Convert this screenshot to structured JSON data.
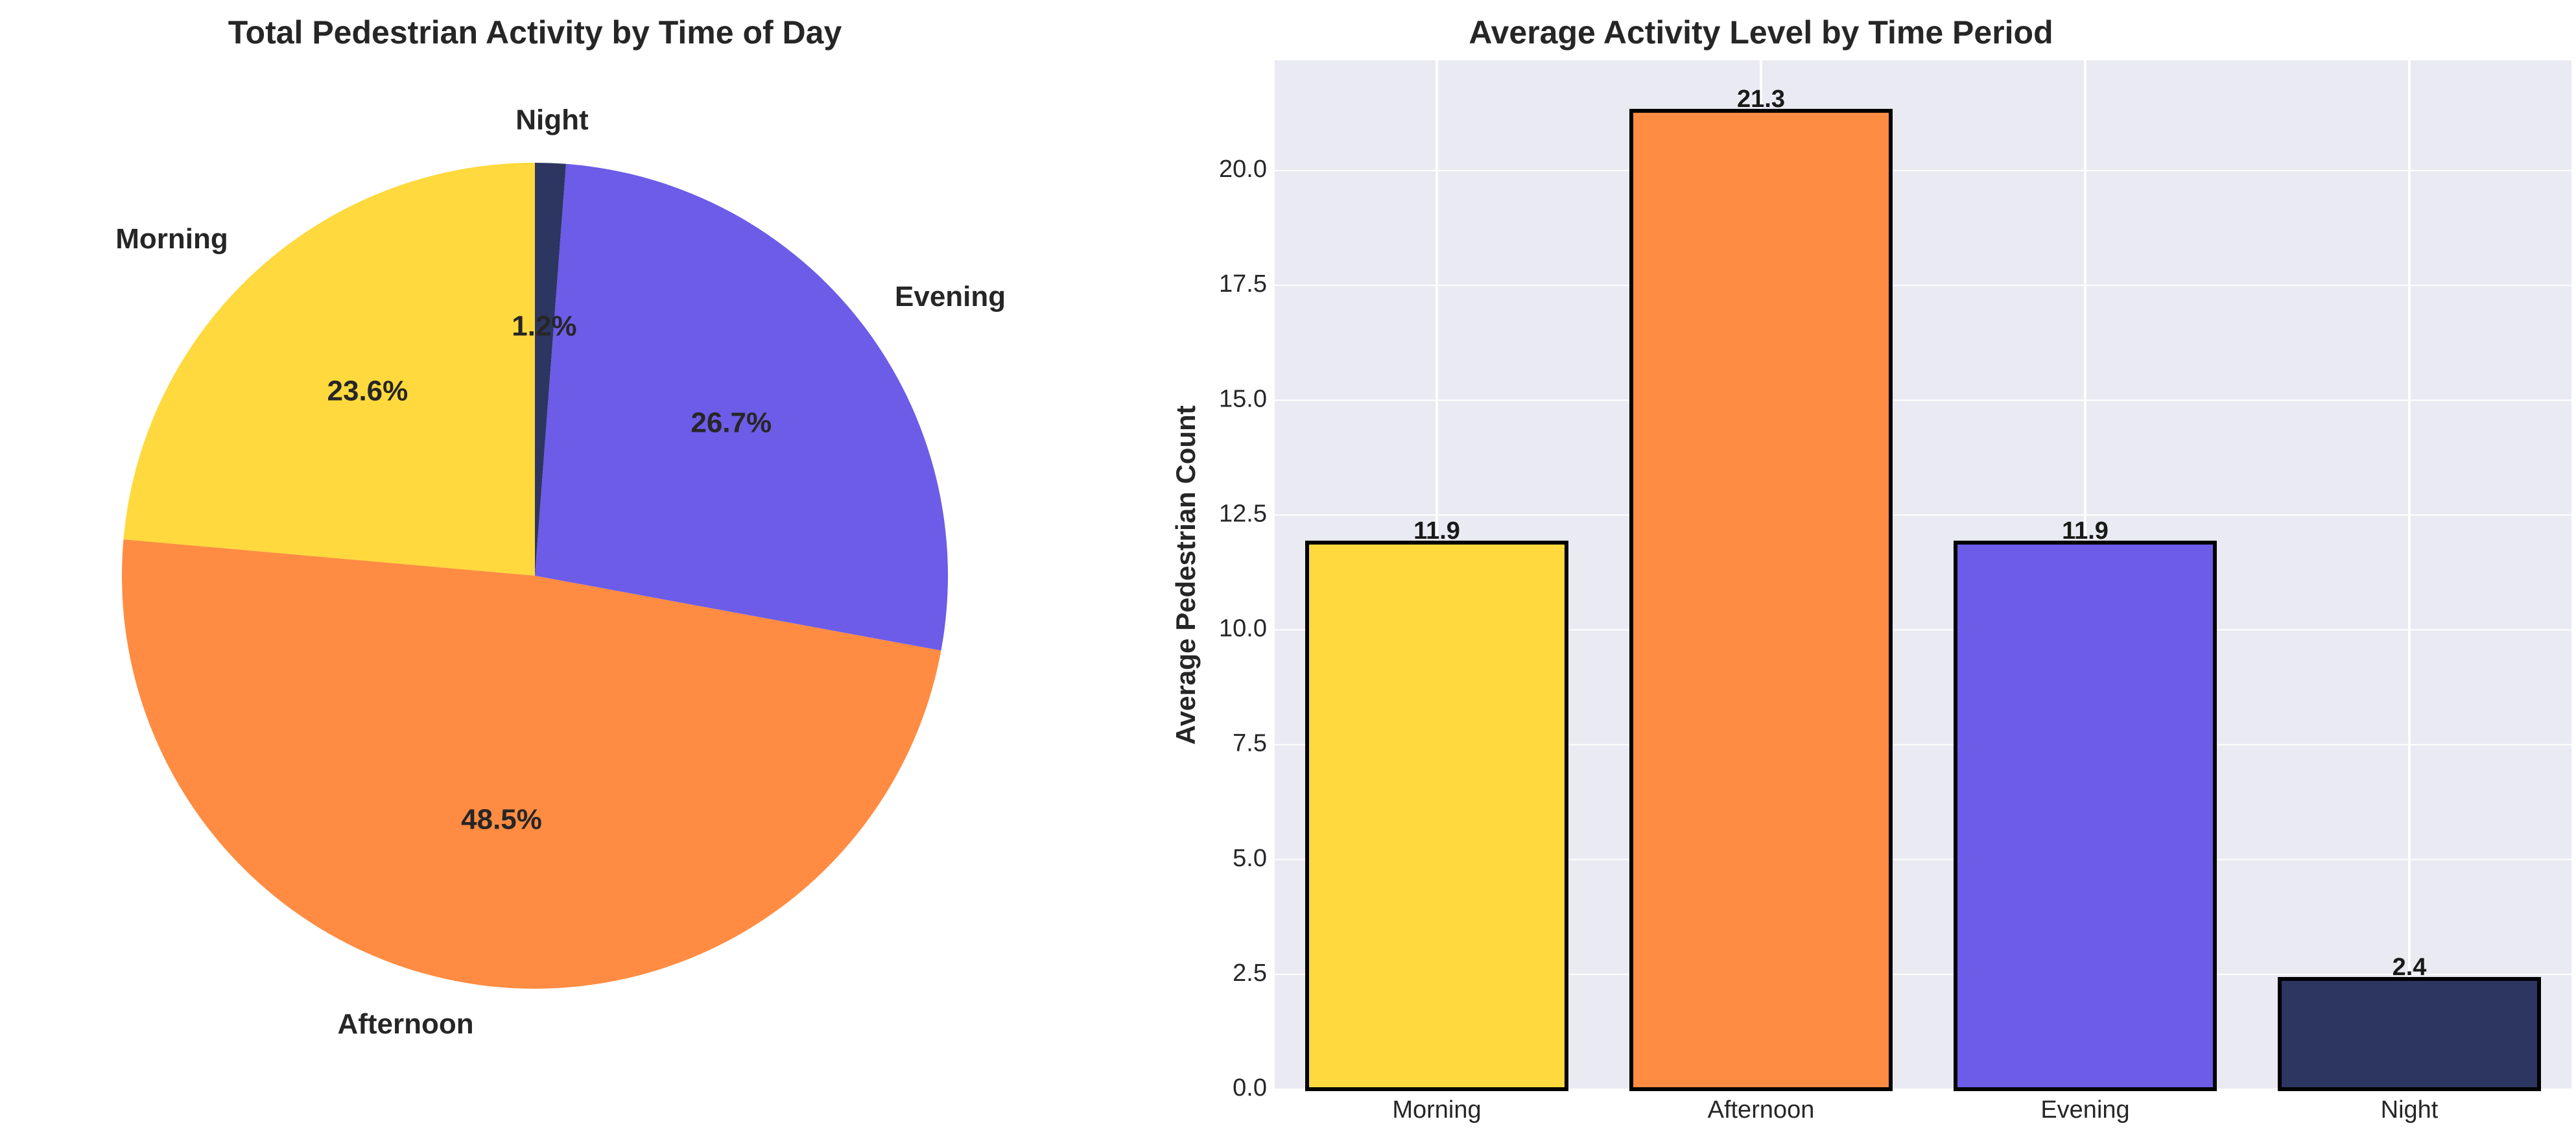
{
  "chart_data": [
    {
      "type": "pie",
      "title": "Total Pedestrian Activity by Time of Day",
      "categories": [
        "Morning",
        "Afternoon",
        "Evening",
        "Night"
      ],
      "values": [
        23.6,
        48.5,
        26.7,
        1.2
      ],
      "value_labels": [
        "23.6%",
        "48.5%",
        "26.7%",
        "1.2%"
      ],
      "colors": [
        "#FFD93D",
        "#FF8C42",
        "#6C5CE7",
        "#2D3561"
      ],
      "start_angle_deg": 90,
      "direction": "counterclockwise"
    },
    {
      "type": "bar",
      "title": "Average Activity Level by Time Period",
      "categories": [
        "Morning",
        "Afternoon",
        "Evening",
        "Night"
      ],
      "values": [
        11.9,
        21.3,
        11.9,
        2.4
      ],
      "value_labels": [
        "11.9",
        "21.3",
        "11.9",
        "2.4"
      ],
      "colors": [
        "#FFD93D",
        "#FF8C42",
        "#6C5CE7",
        "#2D3561"
      ],
      "xlabel": "",
      "ylabel": "Average Pedestrian Count",
      "ylim": [
        0,
        22.4
      ],
      "yticks": [
        0.0,
        2.5,
        5.0,
        7.5,
        10.0,
        12.5,
        15.0,
        17.5,
        20.0
      ],
      "ytick_labels": [
        "0.0",
        "2.5",
        "5.0",
        "7.5",
        "10.0",
        "12.5",
        "15.0",
        "17.5",
        "20.0"
      ],
      "grid": true,
      "background": "#EAEAF2"
    }
  ]
}
